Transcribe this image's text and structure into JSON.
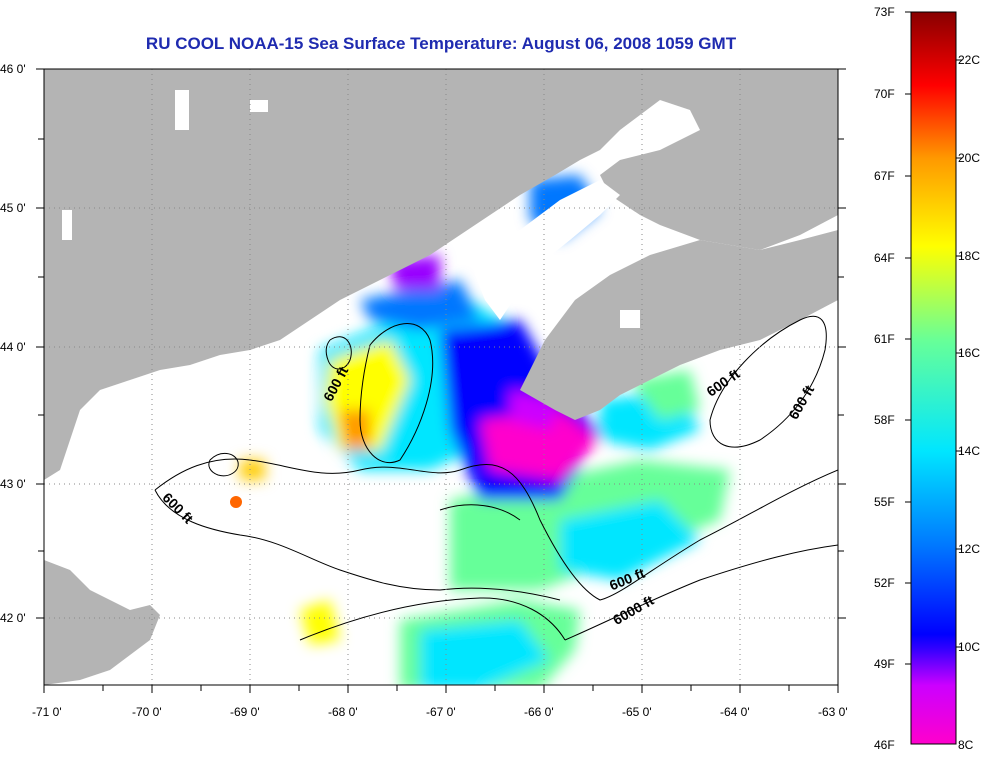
{
  "title": "RU COOL  NOAA-15  Sea Surface Temperature:  August 06, 2008 1059 GMT",
  "map": {
    "lon_labels": [
      "-71 0'",
      "-70 0'",
      "-69 0'",
      "-68 0'",
      "-67 0'",
      "-66 0'",
      "-65 0'",
      "-64 0'",
      "-63 0'"
    ],
    "lat_labels": [
      "46 0'",
      "45 0'",
      "44 0'",
      "43 0'",
      "42 0'"
    ],
    "contour_labels": [
      "600 ft",
      "600 ft",
      "600 ft",
      "600 ft",
      "600 ft",
      "6000 ft"
    ],
    "colors": {
      "land": "#b4b4b4",
      "no_data": "#ffffff",
      "gridlines": "#888888"
    }
  },
  "colorbar": {
    "fahrenheit_labels": [
      "73F",
      "70F",
      "67F",
      "64F",
      "61F",
      "58F",
      "55F",
      "52F",
      "49F",
      "46F"
    ],
    "celsius_labels": [
      "22C",
      "20C",
      "18C",
      "16C",
      "14C",
      "12C",
      "10C",
      "8C"
    ],
    "colors": [
      "#ff00cc",
      "#9900ff",
      "#0000ff",
      "#0077ff",
      "#00e6ff",
      "#66ff99",
      "#ffff00",
      "#ff9900",
      "#ff0000",
      "#880000"
    ]
  }
}
